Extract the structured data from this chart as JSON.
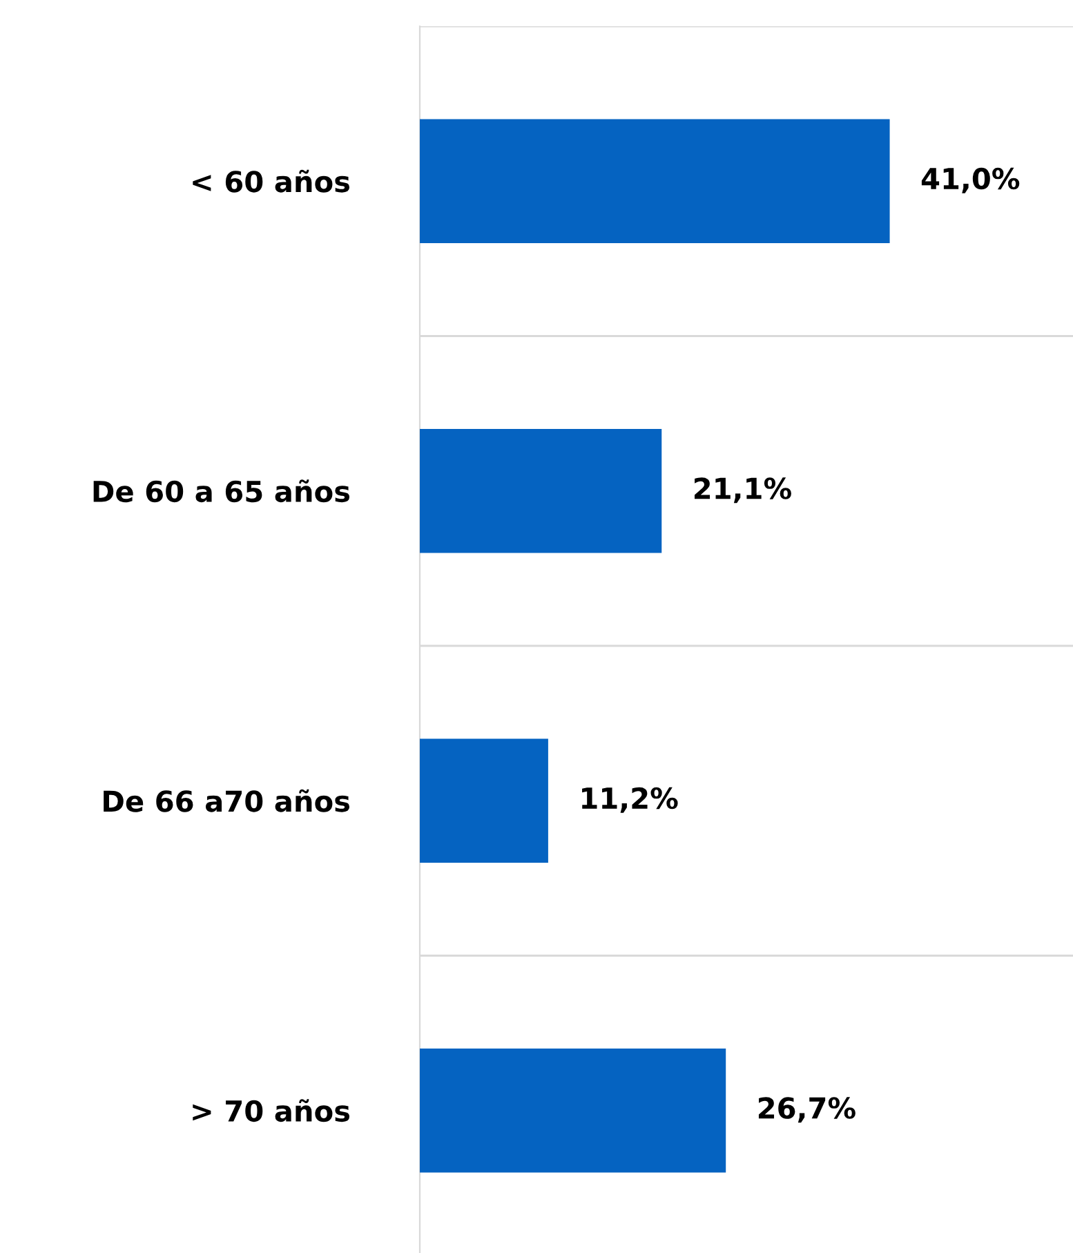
{
  "chart_data": {
    "type": "bar",
    "orientation": "horizontal",
    "categories": [
      "< 60 años",
      "De 60 a 65 años",
      "De 66 a70 años",
      "> 70 años"
    ],
    "values": [
      41.0,
      21.1,
      11.2,
      26.7
    ],
    "value_labels": [
      "41,0%",
      "21,1%",
      "11,2%",
      "26,7%"
    ],
    "color": "#0563c1",
    "grid": "y",
    "legend": false
  }
}
